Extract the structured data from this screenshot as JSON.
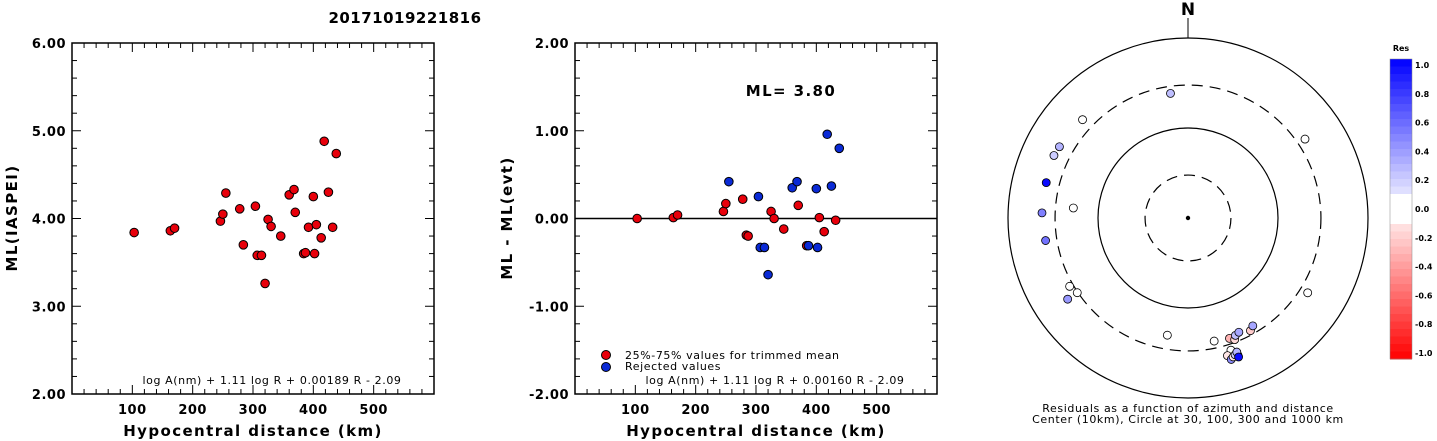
{
  "event_id": "20171019221816",
  "colors": {
    "retained": "#e8000b",
    "rejected": "#0a2ad6",
    "axis": "#000000"
  },
  "chart_data": [
    {
      "type": "scatter",
      "title": "",
      "xlabel": "Hypocentral distance (km)",
      "ylabel": "ML(IASPEI)",
      "xlim": [
        0,
        600
      ],
      "ylim": [
        2.0,
        6.0
      ],
      "xticks": [
        "100",
        "200",
        "300",
        "400",
        "500"
      ],
      "yticks": [
        "2.00",
        "3.00",
        "4.00",
        "5.00",
        "6.00"
      ],
      "grid": false,
      "formula": "log A(nm) + 1.11 log R + 0.00189 R - 2.09",
      "series": [
        {
          "points": [
            [
              103,
              3.84
            ],
            [
              163,
              3.86
            ],
            [
              170,
              3.89
            ],
            [
              246,
              3.97
            ],
            [
              250,
              4.05
            ],
            [
              255,
              4.29
            ],
            [
              278,
              4.11
            ],
            [
              284,
              3.7
            ],
            [
              304,
              4.14
            ],
            [
              307,
              3.58
            ],
            [
              314,
              3.58
            ],
            [
              320,
              3.26
            ],
            [
              325,
              3.99
            ],
            [
              330,
              3.91
            ],
            [
              346,
              3.8
            ],
            [
              360,
              4.27
            ],
            [
              368,
              4.33
            ],
            [
              370,
              4.07
            ],
            [
              384,
              3.6
            ],
            [
              387,
              3.61
            ],
            [
              392,
              3.9
            ],
            [
              400,
              4.25
            ],
            [
              402,
              3.6
            ],
            [
              405,
              3.93
            ],
            [
              413,
              3.78
            ],
            [
              418,
              4.88
            ],
            [
              425,
              4.3
            ],
            [
              432,
              3.9
            ],
            [
              438,
              4.74
            ]
          ]
        }
      ]
    },
    {
      "type": "scatter",
      "title": "ML= 3.80",
      "xlabel": "Hypocentral distance (km)",
      "ylabel": "ML - ML(evt)",
      "xlim": [
        0,
        600
      ],
      "ylim": [
        -2.0,
        2.0
      ],
      "xticks": [
        "100",
        "200",
        "300",
        "400",
        "500"
      ],
      "yticks": [
        "-2.00",
        "-1.00",
        "0.00",
        "1.00",
        "2.00"
      ],
      "zero_line": 0,
      "grid": false,
      "formula": "log A(nm) + 1.11 log R + 0.00160 R - 2.09",
      "legend_position": "bottom-left",
      "series": [
        {
          "name": "25%-75% values for trimmed mean",
          "points": [
            [
              103,
              0.0
            ],
            [
              163,
              0.01
            ],
            [
              170,
              0.04
            ],
            [
              246,
              0.08
            ],
            [
              250,
              0.17
            ],
            [
              278,
              0.22
            ],
            [
              284,
              -0.19
            ],
            [
              287,
              -0.2
            ],
            [
              325,
              0.08
            ],
            [
              330,
              0.0
            ],
            [
              346,
              -0.12
            ],
            [
              370,
              0.15
            ],
            [
              384,
              -0.31
            ],
            [
              405,
              0.01
            ],
            [
              413,
              -0.15
            ],
            [
              432,
              -0.02
            ]
          ]
        },
        {
          "name": "Rejected values",
          "points": [
            [
              255,
              0.42
            ],
            [
              304,
              0.25
            ],
            [
              307,
              -0.33
            ],
            [
              314,
              -0.33
            ],
            [
              320,
              -0.64
            ],
            [
              360,
              0.35
            ],
            [
              368,
              0.42
            ],
            [
              387,
              -0.31
            ],
            [
              400,
              0.34
            ],
            [
              402,
              -0.33
            ],
            [
              418,
              0.96
            ],
            [
              425,
              0.37
            ],
            [
              438,
              0.8
            ]
          ]
        }
      ]
    },
    {
      "type": "scatter",
      "title": "N",
      "caption": [
        "Residuals as a function of azimuth and distance",
        "Center (10km), Circle at 30, 100, 300 and 1000 km"
      ],
      "radial_scale": "log",
      "center_km": 10,
      "circles_km": [
        30,
        100,
        300,
        1000
      ],
      "colorbar": {
        "label": "Res",
        "ticks": [
          "1.0",
          "0.8",
          "0.6",
          "0.4",
          "0.2",
          "0.0",
          "-0.2",
          "-0.4",
          "-0.6",
          "-0.8",
          "-1.0"
        ],
        "max_color": "#0000ff",
        "min_color": "#ff0000"
      },
      "points": [
        {
          "azimuth": 352,
          "distance": 250,
          "residual": 0.25
        },
        {
          "azimuth": 313,
          "distance": 400,
          "residual": 0.0
        },
        {
          "azimuth": 299,
          "distance": 430,
          "residual": 0.3
        },
        {
          "azimuth": 295,
          "distance": 440,
          "residual": 0.2
        },
        {
          "azimuth": 56,
          "distance": 370,
          "residual": 0.0
        },
        {
          "azimuth": 284,
          "distance": 420,
          "residual": 0.96
        },
        {
          "azimuth": 272,
          "distance": 420,
          "residual": 0.5
        },
        {
          "azimuth": 261,
          "distance": 400,
          "residual": 0.55
        },
        {
          "azimuth": 275,
          "distance": 190,
          "residual": 0.0
        },
        {
          "azimuth": 240,
          "distance": 330,
          "residual": 0.0
        },
        {
          "azimuth": 236,
          "distance": 305,
          "residual": 0.0
        },
        {
          "azimuth": 236,
          "distance": 410,
          "residual": 0.4
        },
        {
          "azimuth": 122,
          "distance": 370,
          "residual": 0.0
        },
        {
          "azimuth": 168,
          "distance": 250,
          "residual": 0.0
        },
        {
          "azimuth": 190,
          "distance": 210,
          "residual": 0.0
        },
        {
          "azimuth": 161,
          "distance": 260,
          "residual": -0.3
        },
        {
          "azimuth": 159,
          "distance": 280,
          "residual": -0.15
        },
        {
          "azimuth": 158,
          "distance": 255,
          "residual": 0.25
        },
        {
          "azimuth": 156,
          "distance": 245,
          "residual": 0.35
        },
        {
          "azimuth": 151,
          "distance": 270,
          "residual": -0.2
        },
        {
          "azimuth": 149,
          "distance": 250,
          "residual": 0.35
        },
        {
          "azimuth": 162,
          "distance": 350,
          "residual": 0.0
        },
        {
          "azimuth": 164,
          "distance": 390,
          "residual": -0.1
        },
        {
          "azimuth": 163,
          "distance": 440,
          "residual": 0.45
        },
        {
          "azimuth": 162,
          "distance": 420,
          "residual": -0.1
        },
        {
          "azimuth": 160,
          "distance": 420,
          "residual": -0.15
        },
        {
          "azimuth": 161,
          "distance": 405,
          "residual": 0.2
        },
        {
          "azimuth": 160,
          "distance": 385,
          "residual": 0.3
        },
        {
          "azimuth": 160,
          "distance": 440,
          "residual": 0.96
        }
      ]
    }
  ]
}
